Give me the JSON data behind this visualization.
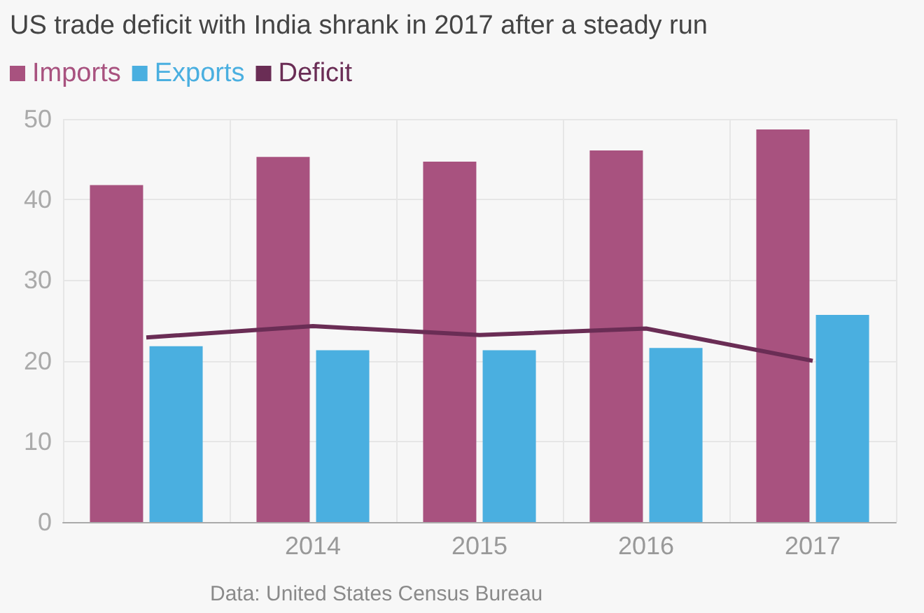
{
  "chart_data": {
    "type": "bar",
    "title": "US trade deficit with India shrank in 2017 after a steady run",
    "categories": [
      null,
      "2014",
      "2015",
      "2016",
      "2017"
    ],
    "series": [
      {
        "name": "Imports",
        "color": "#a8527f",
        "values": [
          41.8,
          45.3,
          44.7,
          46.1,
          48.7
        ]
      },
      {
        "name": "Exports",
        "color": "#4aafe0",
        "values": [
          21.8,
          21.3,
          21.3,
          21.6,
          25.7
        ]
      },
      {
        "name": "Deficit",
        "type": "line",
        "color": "#6a2d55",
        "values": [
          22.9,
          24.3,
          23.2,
          24.0,
          20.0
        ]
      }
    ],
    "ylim": [
      0,
      50
    ],
    "yticks": [
      0,
      10,
      20,
      30,
      40,
      50
    ],
    "grid": true,
    "legend": "top left",
    "marker": "none",
    "line_style": "solid",
    "annotations": [
      "Data: United States Census Bureau"
    ]
  }
}
